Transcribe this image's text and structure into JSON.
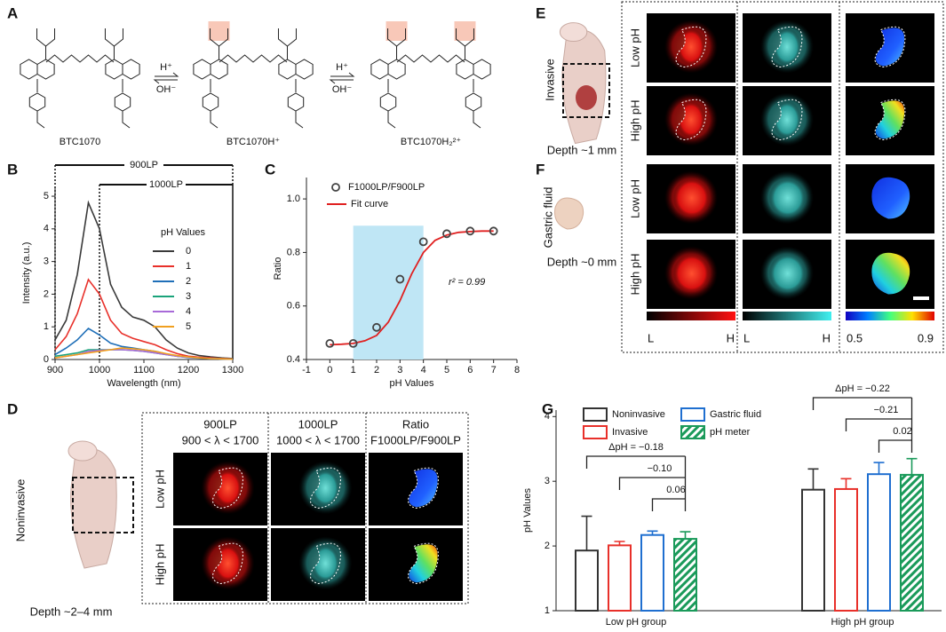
{
  "panel_labels": [
    "A",
    "B",
    "C",
    "D",
    "E",
    "F",
    "G"
  ],
  "structures": {
    "names": [
      "BTC1070",
      "BTC1070H⁺",
      "BTC1070H₂²⁺"
    ],
    "arrows": [
      {
        "forward": "H⁺",
        "back": "OH⁻"
      },
      {
        "forward": "H⁺",
        "back": "OH⁻"
      }
    ]
  },
  "chart_data": [
    {
      "type": "line",
      "xlabel": "Wavelength (nm)",
      "ylabel": "Intensity (a.u.)",
      "legend_title": "pH Values",
      "x": [
        900,
        925,
        950,
        975,
        1000,
        1025,
        1050,
        1075,
        1100,
        1125,
        1150,
        1175,
        1200,
        1225,
        1250,
        1275,
        1300
      ],
      "xlim": [
        900,
        1300
      ],
      "xticks": [
        900,
        1000,
        1100,
        1200,
        1300
      ],
      "ylim": [
        0,
        5.3
      ],
      "yticks": [
        0,
        1,
        2,
        3,
        4,
        5
      ],
      "regions": [
        {
          "label": "900LP",
          "x": [
            900,
            1300
          ]
        },
        {
          "label": "1000LP",
          "x": [
            1000,
            1300
          ]
        }
      ],
      "series": [
        {
          "name": "0",
          "color": "#3a3a3a",
          "values": [
            0.6,
            1.2,
            2.6,
            4.8,
            4.0,
            2.3,
            1.6,
            1.3,
            1.2,
            1.0,
            0.6,
            0.35,
            0.2,
            0.12,
            0.08,
            0.05,
            0.03
          ]
        },
        {
          "name": "1",
          "color": "#e8302a",
          "values": [
            0.3,
            0.7,
            1.4,
            2.45,
            2.0,
            1.2,
            0.8,
            0.65,
            0.55,
            0.45,
            0.3,
            0.18,
            0.1,
            0.07,
            0.05,
            0.03,
            0.02
          ]
        },
        {
          "name": "2",
          "color": "#1f6fb8",
          "values": [
            0.15,
            0.35,
            0.6,
            0.95,
            0.75,
            0.5,
            0.4,
            0.35,
            0.3,
            0.25,
            0.17,
            0.1,
            0.06,
            0.04,
            0.03,
            0.02,
            0.01
          ]
        },
        {
          "name": "3",
          "color": "#1aa37a",
          "values": [
            0.1,
            0.15,
            0.2,
            0.3,
            0.3,
            0.3,
            0.3,
            0.28,
            0.25,
            0.2,
            0.15,
            0.1,
            0.07,
            0.05,
            0.03,
            0.02,
            0.01
          ]
        },
        {
          "name": "4",
          "color": "#a86ad8",
          "values": [
            0.05,
            0.1,
            0.15,
            0.25,
            0.28,
            0.3,
            0.3,
            0.28,
            0.25,
            0.2,
            0.15,
            0.1,
            0.07,
            0.05,
            0.03,
            0.02,
            0.01
          ]
        },
        {
          "name": "5",
          "color": "#f0a020",
          "values": [
            0.05,
            0.1,
            0.15,
            0.2,
            0.25,
            0.3,
            0.35,
            0.33,
            0.3,
            0.25,
            0.18,
            0.12,
            0.08,
            0.05,
            0.03,
            0.02,
            0.01
          ]
        }
      ]
    },
    {
      "type": "scatter",
      "xlabel": "pH Values",
      "ylabel": "Ratio",
      "annotation": "r² = 0.99",
      "xlim": [
        -1,
        8
      ],
      "xticks": [
        -1,
        0,
        1,
        2,
        3,
        4,
        5,
        6,
        7,
        8
      ],
      "ylim": [
        0.4,
        1.08
      ],
      "yticks": [
        0.4,
        0.6,
        0.8,
        {
          "value": 1,
          "label": "1.0"
        }
      ],
      "highlight": {
        "x": [
          1,
          4
        ],
        "y": [
          0.4,
          0.9
        ]
      },
      "series": [
        {
          "name": "F1000LP/F900LP",
          "color": "#444444",
          "x": [
            0,
            1,
            2,
            3,
            4,
            5,
            6,
            7
          ],
          "values": [
            0.46,
            0.46,
            0.52,
            0.7,
            0.84,
            0.87,
            0.88,
            0.88
          ]
        }
      ],
      "fit": {
        "name": "Fit curve",
        "color": "#e02020",
        "x": [
          0,
          0.5,
          1,
          1.5,
          2,
          2.5,
          3,
          3.5,
          4,
          4.5,
          5,
          5.5,
          6,
          6.5,
          7
        ],
        "values": [
          0.455,
          0.457,
          0.46,
          0.47,
          0.49,
          0.54,
          0.62,
          0.72,
          0.8,
          0.845,
          0.865,
          0.875,
          0.878,
          0.88,
          0.88
        ]
      }
    },
    {
      "type": "bar",
      "ylabel": "pH Values",
      "categories": [
        "Low pH group",
        "High pH group"
      ],
      "ylim": [
        1,
        4.1
      ],
      "yticks": [
        1,
        2,
        3,
        4
      ],
      "series": [
        {
          "name": "Noninvasive",
          "color": "#333333",
          "values": [
            1.93,
            2.87
          ],
          "errors": [
            0.53,
            0.32
          ]
        },
        {
          "name": "Invasive",
          "color": "#e8302a",
          "values": [
            2.01,
            2.88
          ],
          "errors": [
            0.06,
            0.16
          ]
        },
        {
          "name": "Gastric fluid",
          "color": "#1f6fd0",
          "values": [
            2.17,
            3.11
          ],
          "errors": [
            0.06,
            0.18
          ]
        },
        {
          "name": "pH meter",
          "color": "#1a9a5a",
          "hatch": true,
          "values": [
            2.11,
            3.1
          ],
          "errors": [
            0.11,
            0.25
          ]
        }
      ],
      "annotations": [
        [
          "ΔpH = −0.18",
          "−0.10",
          "0.06"
        ],
        [
          "ΔpH = −0.22",
          "−0.21",
          "0.02"
        ]
      ]
    }
  ],
  "imaging": {
    "D": {
      "sample": "Noninvasive",
      "depth": "Depth ~2–4 mm",
      "columns": [
        {
          "title": "900LP",
          "subtitle": "900 < λ < 1700"
        },
        {
          "title": "1000LP",
          "subtitle": "1000 < λ < 1700"
        },
        {
          "title": "Ratio",
          "subtitle": "F1000LP/F900LP"
        }
      ],
      "rows": [
        "Low pH",
        "High pH"
      ]
    },
    "E": {
      "sample": "Invasive",
      "depth": "Depth ~1 mm",
      "rows": [
        "Low pH",
        "High pH"
      ]
    },
    "F": {
      "sample": "Gastric fluid",
      "depth": "Depth ~0 mm",
      "rows": [
        "Low pH",
        "High pH"
      ]
    },
    "colorbars": [
      {
        "low": "L",
        "high": "H"
      },
      {
        "low": "L",
        "high": "H"
      },
      {
        "low": "0.5",
        "high": "0.9"
      }
    ]
  }
}
